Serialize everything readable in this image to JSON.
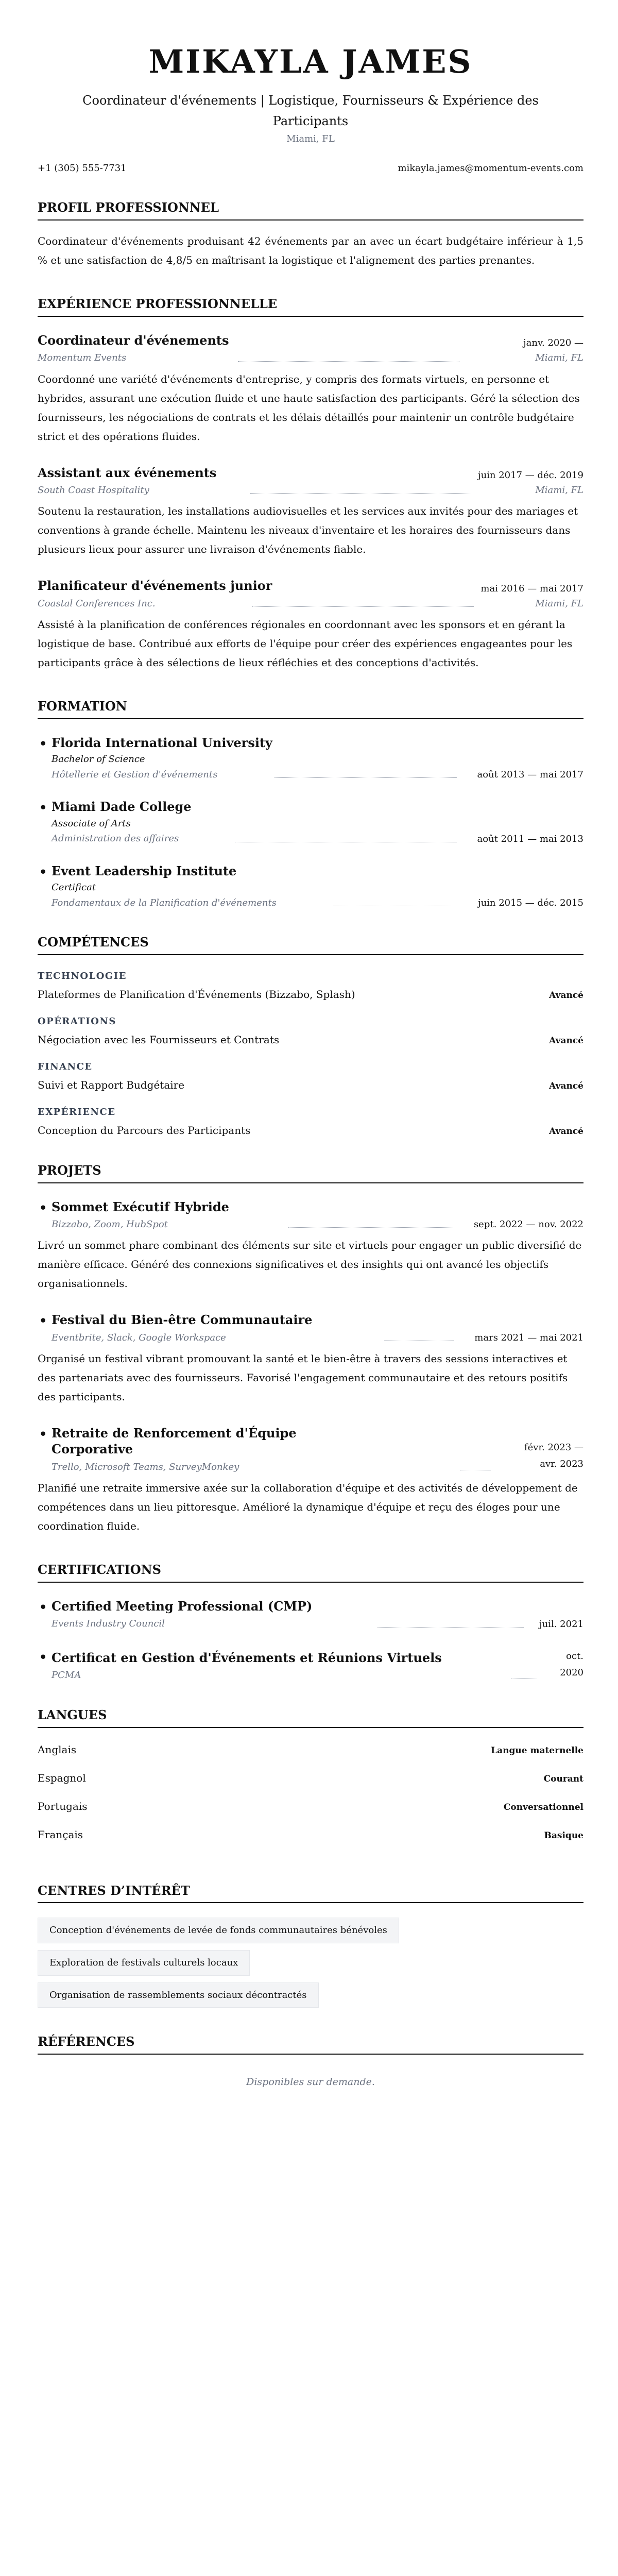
{
  "header": {
    "name": "MIKAYLA JAMES",
    "subtitle": "Coordinateur d'événements | Logistique, Fournisseurs & Expérience des Participants",
    "location": "Miami, FL",
    "phone": "+1 (305) 555-7731",
    "email": "mikayla.james@momentum-events.com"
  },
  "profile": {
    "heading": "PROFIL PROFESSIONNEL",
    "text": "Coordinateur d'événements produisant 42 événements par an avec un écart budgétaire inférieur à 1,5 % et une satisfaction de 4,8/5 en maîtrisant la logistique et l'alignement des parties prenantes."
  },
  "experience": {
    "heading": "EXPÉRIENCE PROFESSIONNELLE",
    "items": [
      {
        "title": "Coordinateur d'événements",
        "dates": "janv. 2020 —",
        "company": "Momentum Events",
        "location": "Miami, FL",
        "description": "Coordonné une variété d'événements d'entreprise, y compris des formats virtuels, en personne et hybrides, assurant une exécution fluide et une haute satisfaction des participants. Géré la sélection des fournisseurs, les négociations de contrats et les délais détaillés pour maintenir un contrôle budgétaire strict et des opérations fluides."
      },
      {
        "title": "Assistant aux événements",
        "dates": "juin 2017 — déc. 2019",
        "company": "South Coast Hospitality",
        "location": "Miami, FL",
        "description": "Soutenu la restauration, les installations audiovisuelles et les services aux invités pour des mariages et conventions à grande échelle. Maintenu les niveaux d'inventaire et les horaires des fournisseurs dans plusieurs lieux pour assurer une livraison d'événements fiable."
      },
      {
        "title": "Planificateur d'événements junior",
        "dates": "mai 2016 — mai 2017",
        "company": "Coastal Conferences Inc.",
        "location": "Miami, FL",
        "description": "Assisté à la planification de conférences régionales en coordonnant avec les sponsors et en gérant la logistique de base. Contribué aux efforts de l'équipe pour créer des expériences engageantes pour les participants grâce à des sélections de lieux réfléchies et des conceptions d'activités."
      }
    ]
  },
  "education": {
    "heading": "FORMATION",
    "items": [
      {
        "school": "Florida International University",
        "degree": "Bachelor of Science",
        "field": "Hôtellerie et Gestion d'événements",
        "dates": "août 2013 — mai 2017"
      },
      {
        "school": "Miami Dade College",
        "degree": "Associate of Arts",
        "field": "Administration des affaires",
        "dates": "août 2011 — mai 2013"
      },
      {
        "school": "Event Leadership Institute",
        "degree": "Certificat",
        "field": "Fondamentaux de la Planification d'événements",
        "dates": "juin 2015 — déc. 2015"
      }
    ]
  },
  "skills": {
    "heading": "COMPÉTENCES",
    "categories": [
      {
        "name": "TECHNOLOGIE",
        "skill": "Plateformes de Planification d'Événements (Bizzabo, Splash)",
        "level": "Avancé"
      },
      {
        "name": "OPÉRATIONS",
        "skill": "Négociation avec les Fournisseurs et Contrats",
        "level": "Avancé"
      },
      {
        "name": "FINANCE",
        "skill": "Suivi et Rapport Budgétaire",
        "level": "Avancé"
      },
      {
        "name": "EXPÉRIENCE",
        "skill": "Conception du Parcours des Participants",
        "level": "Avancé"
      }
    ]
  },
  "projects": {
    "heading": "PROJETS",
    "items": [
      {
        "title": "Sommet Exécutif Hybride",
        "tools": "Bizzabo, Zoom, HubSpot",
        "dates": "sept. 2022 — nov. 2022",
        "description": "Livré un sommet phare combinant des éléments sur site et virtuels pour engager un public diversifié de manière efficace. Généré des connexions significatives et des insights qui ont avancé les objectifs organisationnels."
      },
      {
        "title": "Festival du Bien-être Communautaire",
        "tools": "Eventbrite, Slack, Google Workspace",
        "dates": "mars 2021 — mai 2021",
        "description": "Organisé un festival vibrant promouvant la santé et le bien-être à travers des sessions interactives et des partenariats avec des fournisseurs. Favorisé l'engagement communautaire et des retours positifs des participants."
      },
      {
        "title": "Retraite de Renforcement d'Équipe Corporative",
        "tools": "Trello, Microsoft Teams, SurveyMonkey",
        "dates": "févr. 2023 — avr. 2023",
        "description": "Planifié une retraite immersive axée sur la collaboration d'équipe et des activités de développement de compétences dans un lieu pittoresque. Amélioré la dynamique d'équipe et reçu des éloges pour une coordination fluide."
      }
    ]
  },
  "certifications": {
    "heading": "CERTIFICATIONS",
    "items": [
      {
        "title": "Certified Meeting Professional (CMP)",
        "issuer": "Events Industry Council",
        "date": "juil. 2021"
      },
      {
        "title": "Certificat en Gestion d'Événements et Réunions Virtuels",
        "issuer": "PCMA",
        "date": "oct. 2020"
      }
    ]
  },
  "languages": {
    "heading": "LANGUES",
    "items": [
      {
        "name": "Anglais",
        "level": "Langue maternelle"
      },
      {
        "name": "Espagnol",
        "level": "Courant"
      },
      {
        "name": "Portugais",
        "level": "Conversationnel"
      },
      {
        "name": "Français",
        "level": "Basique"
      }
    ]
  },
  "interests": {
    "heading": "CENTRES D’INTÉRÊT",
    "items": [
      "Conception d'événements de levée de fonds communautaires bénévoles",
      "Exploration de festivals culturels locaux",
      "Organisation de rassemblements sociaux décontractés"
    ]
  },
  "references": {
    "heading": "RÉFÉRENCES",
    "text": "Disponibles sur demande."
  }
}
